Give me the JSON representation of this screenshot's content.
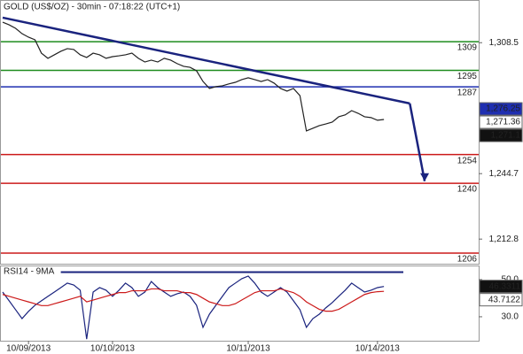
{
  "chart_data": [
    {
      "type": "line",
      "title": "GOLD (US$/OZ) - 30min - 07:18:22 (UTC+1)",
      "series": [
        {
          "name": "GOLD",
          "color": "#222222",
          "values": [
            1318.5,
            1317.2,
            1315.5,
            1312.9,
            1311.2,
            1309.9,
            1303.4,
            1300.9,
            1302.6,
            1304.3,
            1305.6,
            1305.2,
            1302.6,
            1301.3,
            1303.4,
            1302.6,
            1300.9,
            1301.7,
            1302.1,
            1302.6,
            1303.4,
            1300.9,
            1299.1,
            1300.0,
            1299.1,
            1300.9,
            1300.0,
            1298.3,
            1297.0,
            1296.5,
            1294.8,
            1289.6,
            1286.2,
            1287.1,
            1287.5,
            1288.4,
            1289.2,
            1290.5,
            1291.4,
            1290.5,
            1289.6,
            1290.5,
            1288.8,
            1286.2,
            1284.9,
            1286.2,
            1282.7,
            1265.5,
            1266.8,
            1268.1,
            1268.9,
            1269.8,
            1272.4,
            1273.3,
            1275.4,
            1274.1,
            1272.4,
            1272.0,
            1270.7,
            1271.1
          ]
        }
      ],
      "trend_lines": [
        {
          "color": "#1a237e",
          "x": [
            0,
            63
          ],
          "values": [
            1320.7,
            1278.9
          ]
        },
        {
          "color": "#1a237e",
          "x": [
            63,
            65.3
          ],
          "values": [
            1278.9,
            1241
          ]
        }
      ],
      "levels": [
        {
          "value": 1309,
          "color": "#1e8c1e"
        },
        {
          "value": 1295,
          "color": "#1e8c1e"
        },
        {
          "value": 1287,
          "color": "#1f2fb0"
        },
        {
          "value": 1254,
          "color": "#cc1a1a"
        },
        {
          "value": 1240,
          "color": "#cc1a1a"
        },
        {
          "value": 1206,
          "color": "#cc1a1a"
        }
      ],
      "price_tags": [
        {
          "value": 1276.25,
          "label": "1,276.25",
          "color": "#1f2fb0",
          "text_color": "#ffffff"
        },
        {
          "value": 1271.36,
          "label": "1,271.36",
          "color": "#ffffff",
          "text_color": "#cc1a1a"
        },
        {
          "value": 1271.1,
          "label": "1,271.1",
          "color": "#111111",
          "text_color": "#ffffff"
        }
      ],
      "xlim": [
        0,
        62
      ],
      "xticks": [
        {
          "value": 4,
          "label": "10/09/2013"
        },
        {
          "value": 17,
          "label": "10/10/2013"
        },
        {
          "value": 38,
          "label": "10/11/2013"
        },
        {
          "value": 58,
          "label": "10/14/2013"
        }
      ],
      "ylim": [
        1200.8,
        1329.3
      ],
      "yticks": [
        {
          "value": 1308.5,
          "label": "1,308.5"
        },
        {
          "value": 1244.7,
          "label": "1,244.7"
        },
        {
          "value": 1212.8,
          "label": "1,212.8"
        }
      ]
    },
    {
      "type": "line",
      "title": "RSI14 - 9MA",
      "series": [
        {
          "name": "RSI14",
          "color": "#1a237e",
          "values": [
            43.3,
            38.6,
            33.8,
            29.0,
            32.9,
            36.2,
            38.6,
            41.0,
            43.3,
            45.7,
            48.1,
            47.1,
            44.3,
            18,
            43.3,
            45.7,
            44.3,
            41.0,
            44.3,
            48.1,
            45.7,
            41.0,
            43.3,
            49.0,
            45.7,
            43.3,
            41.0,
            42.4,
            43.3,
            41.0,
            36.2,
            24.3,
            31.4,
            36.2,
            41.0,
            45.7,
            48.1,
            50.5,
            51.9,
            48.1,
            43.3,
            41.0,
            43.3,
            45.7,
            43.3,
            38.6,
            33.8,
            24.3,
            29.0,
            31.4,
            34.8,
            37.6,
            41.0,
            44.3,
            48.1,
            45.7,
            43.3,
            44.3,
            45.7,
            46.3
          ]
        },
        {
          "name": "9MA",
          "color": "#cc1a1a",
          "values": [
            42,
            41,
            40,
            39,
            38,
            37,
            36,
            36,
            37,
            38,
            39,
            40,
            41,
            38,
            39,
            40,
            41,
            42,
            43,
            43,
            44,
            44,
            44,
            45,
            45,
            44,
            44,
            44,
            43,
            43,
            42,
            40,
            38,
            37,
            36,
            36,
            37,
            39,
            41,
            43,
            44,
            44,
            44,
            45,
            44,
            43,
            41,
            38,
            36,
            34,
            33,
            33,
            34,
            36,
            38,
            40,
            42,
            43,
            43.5,
            43.7
          ]
        }
      ],
      "level": {
        "value": 54,
        "x": [
          9,
          62
        ],
        "color": "#1a237e"
      },
      "price_tags": [
        {
          "value": 46.3311,
          "label": "46.3311",
          "color": "#111111",
          "text_color": "#ffffff"
        },
        {
          "value": 43.7122,
          "label": "43.7122",
          "color": "#ffffff",
          "text_color": "#cc1a1a"
        }
      ],
      "xlim": [
        0,
        62
      ],
      "ylim": [
        17.1,
        57.6
      ],
      "yticks": [
        {
          "value": 50,
          "label": "50.0"
        },
        {
          "value": 30,
          "label": "30.0"
        }
      ]
    }
  ]
}
